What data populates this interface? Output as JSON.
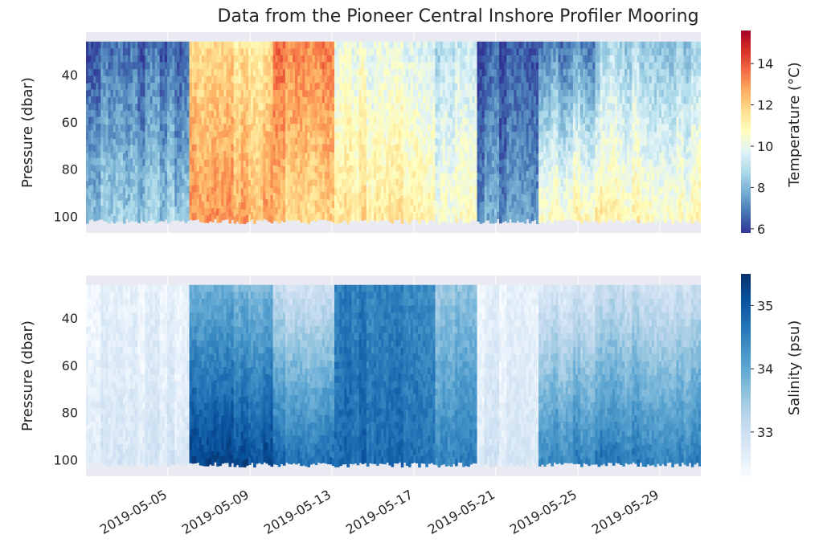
{
  "figure": {
    "title": "Data from the Pioneer Central Inshore Profiler Mooring"
  },
  "chart_data": [
    {
      "type": "heatmap",
      "ylabel": "Pressure (dbar)",
      "yticks": [
        40,
        60,
        80,
        100
      ],
      "yaxis_inverted": true,
      "ylim": [
        107,
        22
      ],
      "x_range": [
        "2019-05-01",
        "2019-05-31"
      ],
      "colorbar": {
        "label": "Temperature (°C)",
        "ticks": [
          6,
          8,
          10,
          12,
          14
        ],
        "range": [
          5.8,
          15.6
        ],
        "colormap": "RdYlBu_r",
        "colors": [
          "#313695",
          "#4575b4",
          "#74add1",
          "#abd9e9",
          "#e0f3f8",
          "#ffffbf",
          "#fee090",
          "#fdae61",
          "#f46d43",
          "#d73027",
          "#a50026"
        ]
      },
      "time_depth_pattern_days": [
        {
          "start": "2019-05-01",
          "end": "2019-05-06",
          "surface": 6.5,
          "bottom": 8.5
        },
        {
          "start": "2019-05-06",
          "end": "2019-05-10",
          "surface": 11.5,
          "bottom": 12.8
        },
        {
          "start": "2019-05-10",
          "end": "2019-05-13",
          "surface": 13.5,
          "bottom": 12.0
        },
        {
          "start": "2019-05-13",
          "end": "2019-05-18",
          "surface": 10.0,
          "bottom": 11.5
        },
        {
          "start": "2019-05-18",
          "end": "2019-05-20",
          "surface": 9.0,
          "bottom": 10.5
        },
        {
          "start": "2019-05-20",
          "end": "2019-05-23",
          "surface": 6.2,
          "bottom": 7.5
        },
        {
          "start": "2019-05-23",
          "end": "2019-05-26",
          "surface": 7.0,
          "bottom": 11.0
        },
        {
          "start": "2019-05-26",
          "end": "2019-05-31",
          "surface": 8.5,
          "bottom": 11.0
        }
      ]
    },
    {
      "type": "heatmap",
      "ylabel": "Pressure (dbar)",
      "yticks": [
        40,
        60,
        80,
        100
      ],
      "yaxis_inverted": true,
      "ylim": [
        107,
        22
      ],
      "x_range": [
        "2019-05-01",
        "2019-05-31"
      ],
      "xticks": [
        "2019-05-05",
        "2019-05-09",
        "2019-05-13",
        "2019-05-17",
        "2019-05-21",
        "2019-05-25",
        "2019-05-29"
      ],
      "colorbar": {
        "label": "Salinity (psu)",
        "ticks": [
          33,
          34,
          35
        ],
        "range": [
          32.3,
          35.5
        ],
        "colormap": "Blues",
        "colors": [
          "#f7fbff",
          "#deebf7",
          "#c6dbef",
          "#9ecae1",
          "#6baed6",
          "#4292c6",
          "#2171b5",
          "#08519c",
          "#08306b"
        ]
      },
      "time_depth_pattern_days": [
        {
          "start": "2019-05-01",
          "end": "2019-05-06",
          "surface": 32.5,
          "bottom": 32.8
        },
        {
          "start": "2019-05-06",
          "end": "2019-05-10",
          "surface": 33.8,
          "bottom": 35.2
        },
        {
          "start": "2019-05-10",
          "end": "2019-05-13",
          "surface": 33.0,
          "bottom": 34.8
        },
        {
          "start": "2019-05-13",
          "end": "2019-05-18",
          "surface": 34.5,
          "bottom": 34.8
        },
        {
          "start": "2019-05-18",
          "end": "2019-05-20",
          "surface": 33.5,
          "bottom": 34.5
        },
        {
          "start": "2019-05-20",
          "end": "2019-05-23",
          "surface": 32.5,
          "bottom": 32.8
        },
        {
          "start": "2019-05-23",
          "end": "2019-05-26",
          "surface": 32.8,
          "bottom": 34.5
        },
        {
          "start": "2019-05-26",
          "end": "2019-05-31",
          "surface": 33.0,
          "bottom": 34.6
        }
      ]
    }
  ]
}
